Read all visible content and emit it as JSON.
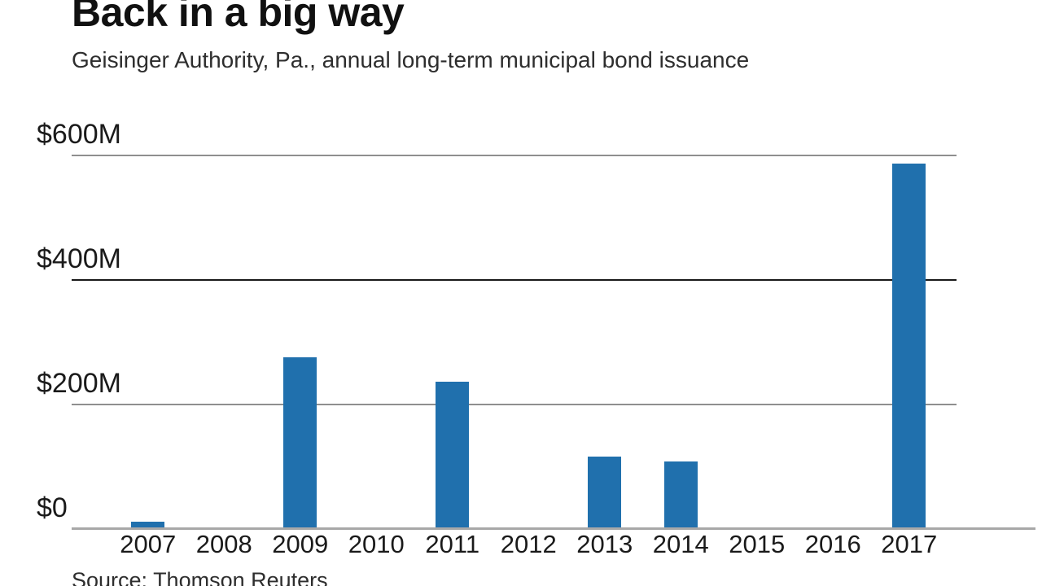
{
  "chart_data": {
    "type": "bar",
    "title": "Back in a big way",
    "subtitle": "Geisinger Authority, Pa., annual long-term municipal bond issuance",
    "source": "Source: Thomson Reuters",
    "unit": "USD millions",
    "categories": [
      "2007",
      "2008",
      "2009",
      "2010",
      "2011",
      "2012",
      "2013",
      "2014",
      "2015",
      "2016",
      "2017"
    ],
    "values": [
      10,
      0,
      275,
      0,
      235,
      0,
      115,
      107,
      0,
      0,
      585
    ],
    "ylim": [
      0,
      600
    ],
    "yticks": [
      {
        "value": 600,
        "label": "$600M",
        "line_color": "#8f8f8f",
        "thickness": 2
      },
      {
        "value": 400,
        "label": "$400M",
        "line_color": "#1a1a1a",
        "thickness": 2
      },
      {
        "value": 200,
        "label": "$200M",
        "line_color": "#8f8f8f",
        "thickness": 2
      },
      {
        "value": 0,
        "label": "$0",
        "line_color": "#a8a8a8",
        "thickness": 3
      }
    ],
    "bar_color": "#2070ad",
    "axis_line_color": "#a8a8a8",
    "grid_on": true,
    "legend_position": "none"
  }
}
